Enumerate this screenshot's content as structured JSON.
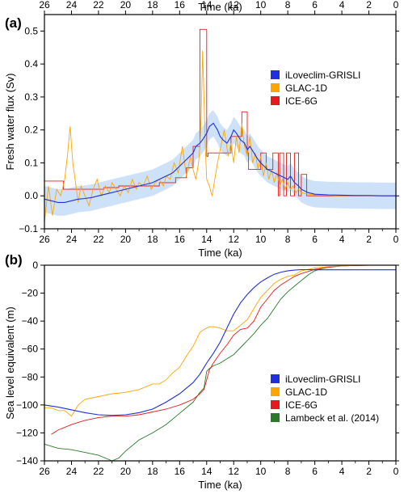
{
  "chart_data": [
    {
      "type": "line",
      "panel_label": "(a)",
      "xlabel": "Time (ka)",
      "ylabel": "Fresh water flux (Sv)",
      "xlim": [
        26,
        0
      ],
      "ylim": [
        -0.1,
        0.55
      ],
      "x_ticks": [
        26,
        24,
        22,
        20,
        18,
        16,
        14,
        12,
        10,
        8,
        6,
        4,
        2,
        0
      ],
      "y_ticks": [
        -0.1,
        0.0,
        0.1,
        0.2,
        0.3,
        0.4,
        0.5
      ],
      "y_tick_labels": [
        "−0.1",
        "0.0",
        "0.1",
        "0.2",
        "0.3",
        "0.4",
        "0.5"
      ],
      "legend_position": "right",
      "series": [
        {
          "name": "iLoveclim-GRISLI",
          "color": "#1f2fe0",
          "x": [
            26,
            25.5,
            25,
            24.5,
            24,
            23.5,
            23,
            22.5,
            22,
            21.5,
            21,
            20.5,
            20,
            19.5,
            19,
            18.5,
            18,
            17.5,
            17,
            16.5,
            16,
            15.5,
            15,
            14.8,
            14.5,
            14.3,
            14,
            13.8,
            13.5,
            13.2,
            13,
            12.8,
            12.5,
            12.2,
            12,
            11.8,
            11.5,
            11.2,
            11,
            10.8,
            10.5,
            10.2,
            10,
            9.5,
            9,
            8.5,
            8,
            7.8,
            7.5,
            7.2,
            7,
            6.5,
            6,
            5,
            4,
            3,
            2,
            1,
            0
          ],
          "y": [
            -0.01,
            -0.015,
            -0.02,
            -0.02,
            -0.015,
            -0.01,
            -0.008,
            -0.005,
            0.0,
            0.005,
            0.01,
            0.015,
            0.02,
            0.025,
            0.03,
            0.035,
            0.04,
            0.05,
            0.06,
            0.07,
            0.09,
            0.11,
            0.13,
            0.15,
            0.16,
            0.17,
            0.19,
            0.21,
            0.22,
            0.2,
            0.18,
            0.17,
            0.16,
            0.18,
            0.2,
            0.19,
            0.17,
            0.16,
            0.14,
            0.15,
            0.13,
            0.11,
            0.1,
            0.08,
            0.07,
            0.06,
            0.05,
            0.06,
            0.04,
            0.03,
            0.02,
            0.01,
            0.005,
            0.003,
            0.002,
            0.001,
            0.001,
            0.0,
            0.0
          ]
        },
        {
          "name": "GLAC-1D",
          "color": "#ffa500",
          "x": [
            26,
            25.7,
            25.4,
            25.1,
            24.8,
            24.5,
            24.3,
            24.1,
            23.9,
            23.7,
            23.5,
            23.3,
            23,
            22.7,
            22.4,
            22.1,
            21.8,
            21.5,
            21.2,
            21,
            20.7,
            20.4,
            20.1,
            19.8,
            19.5,
            19.2,
            19,
            18.7,
            18.4,
            18.1,
            17.8,
            17.5,
            17.2,
            17,
            16.7,
            16.4,
            16.1,
            15.8,
            15.5,
            15.2,
            15,
            14.8,
            14.6,
            14.5,
            14.4,
            14.3,
            14.2,
            14.1,
            14,
            13.8,
            13.6,
            13.4,
            13.2,
            13,
            12.7,
            12.4,
            12.2,
            12,
            11.8,
            11.6,
            11.4,
            11.2,
            11,
            10.8,
            10.6,
            10.4,
            10.2,
            10,
            9.8,
            9.6,
            9.4,
            9.2,
            9,
            8.8,
            8.6,
            8.4,
            8.2,
            8,
            7.8,
            7.6,
            7.4,
            7.2,
            7,
            6.5,
            6,
            5.5,
            5,
            4.5,
            4,
            3.5,
            3,
            2.5,
            2,
            1.5,
            1,
            0.5,
            0
          ],
          "y": [
            -0.08,
            0.03,
            -0.06,
            0.02,
            0.0,
            0.05,
            0.12,
            0.21,
            0.1,
            0.04,
            -0.02,
            0.03,
            0.0,
            -0.03,
            0.02,
            0.05,
            0.0,
            0.03,
            0.01,
            0.04,
            0.02,
            0.0,
            0.03,
            0.01,
            0.05,
            0.02,
            0.04,
            0.03,
            0.06,
            0.02,
            0.04,
            0.05,
            0.03,
            0.06,
            0.05,
            0.1,
            0.07,
            0.15,
            0.06,
            0.12,
            0.08,
            0.05,
            0.1,
            0.15,
            0.25,
            0.44,
            0.3,
            0.15,
            0.05,
            0.03,
            0.0,
            0.05,
            0.1,
            0.14,
            0.2,
            0.12,
            0.16,
            0.1,
            0.18,
            0.13,
            0.22,
            0.15,
            0.12,
            0.18,
            0.1,
            0.13,
            0.08,
            0.12,
            0.06,
            0.1,
            0.05,
            0.08,
            0.04,
            0.07,
            0.03,
            0.05,
            0.02,
            0.04,
            0.02,
            0.03,
            0.01,
            0.02,
            0.01,
            0.005,
            0.003,
            0.002,
            0.002,
            0.001,
            0.001,
            0.001,
            0.001,
            0.001,
            0.0,
            0.0,
            0.0,
            0.0,
            0.0
          ]
        },
        {
          "name": "ICE-6G",
          "color": "#e61a1a",
          "x": [
            26,
            24.6,
            24.6,
            21.6,
            21.6,
            20.5,
            20.5,
            17.5,
            17.5,
            16.3,
            16.3,
            15.5,
            15.5,
            15,
            15,
            14.5,
            14.5,
            14,
            14,
            13.9,
            13.9,
            12.2,
            12.2,
            11.4,
            11.4,
            11,
            11,
            10.9,
            10.9,
            10,
            10,
            9.6,
            9.6,
            9.1,
            9.1,
            8.7,
            8.7,
            8.6,
            8.6,
            8.3,
            8.3,
            8.1,
            8.1,
            7.8,
            7.8,
            7.5,
            7.5,
            7.2,
            7.2,
            7,
            7,
            6.6,
            6.6,
            6,
            6,
            0
          ],
          "y": [
            0.045,
            0.045,
            0.02,
            0.02,
            0.025,
            0.025,
            0.03,
            0.03,
            0.04,
            0.04,
            0.055,
            0.055,
            0.085,
            0.085,
            0.15,
            0.15,
            0.505,
            0.505,
            0.12,
            0.12,
            0.13,
            0.13,
            0.18,
            0.18,
            0.255,
            0.255,
            0.13,
            0.13,
            0.08,
            0.08,
            0.13,
            0.13,
            0.08,
            0.08,
            0.13,
            0.13,
            0.0,
            0.0,
            0.13,
            0.13,
            0.0,
            0.0,
            0.13,
            0.13,
            0.0,
            0.0,
            0.13,
            0.13,
            0.0,
            0.0,
            0.065,
            0.065,
            0.0,
            0.0,
            0.0,
            0.0
          ]
        }
      ]
    },
    {
      "type": "line",
      "panel_label": "(b)",
      "xlabel": "Time (ka)",
      "ylabel": "Sea level equivalent (m)",
      "xlim": [
        26,
        0
      ],
      "ylim": [
        -140,
        0
      ],
      "x_ticks": [
        26,
        24,
        22,
        20,
        18,
        16,
        14,
        12,
        10,
        8,
        6,
        4,
        2,
        0
      ],
      "y_ticks": [
        -140,
        -120,
        -100,
        -80,
        -60,
        -40,
        -20,
        0
      ],
      "y_tick_labels": [
        "−140",
        "−120",
        "−100",
        "−80",
        "−60",
        "−40",
        "−20",
        "0"
      ],
      "legend_position": "bottom-right",
      "series": [
        {
          "name": "iLoveclim-GRISLI",
          "color": "#1f2fe0",
          "x": [
            26,
            25,
            24,
            23,
            22,
            21,
            20,
            19,
            18,
            17,
            16,
            15,
            14.5,
            14,
            13.5,
            13,
            12.5,
            12,
            11.5,
            11,
            10.5,
            10,
            9.5,
            9,
            8.5,
            8,
            7.5,
            7,
            6.5,
            6,
            5,
            4,
            3,
            2,
            1,
            0
          ],
          "y": [
            -100,
            -101.5,
            -103.5,
            -105.5,
            -107,
            -107.5,
            -107,
            -105.5,
            -103,
            -98,
            -92,
            -84,
            -78,
            -70,
            -63,
            -55,
            -45,
            -35,
            -27,
            -21,
            -16,
            -12,
            -9,
            -6.5,
            -5,
            -4,
            -3.5,
            -3.2,
            -3.2,
            -3.3,
            -3.3,
            -3.3,
            -3.3,
            -3.3,
            -3.3,
            -3.3
          ]
        },
        {
          "name": "GLAC-1D",
          "color": "#ffa500",
          "x": [
            26,
            25.5,
            25,
            24.5,
            24,
            23.5,
            23,
            22,
            21,
            20,
            19,
            18,
            17.5,
            17,
            16.5,
            16,
            15.5,
            15,
            14.5,
            14.2,
            14,
            13.8,
            13.5,
            13,
            12.5,
            12,
            11.5,
            11,
            10.5,
            10,
            9.5,
            9,
            8.5,
            8,
            7.5,
            7,
            6,
            5,
            4,
            3,
            2,
            1,
            0
          ],
          "y": [
            -102,
            -102,
            -104,
            -104,
            -108,
            -100,
            -96,
            -94,
            -92,
            -91,
            -89,
            -85,
            -85,
            -82,
            -77,
            -73,
            -65,
            -58,
            -48,
            -46,
            -45,
            -44,
            -44,
            -45,
            -47,
            -47,
            -43,
            -39,
            -31,
            -23,
            -18,
            -13,
            -10,
            -8,
            -7,
            -4,
            -2,
            -1,
            -0.5,
            -0.2,
            0,
            0,
            0
          ]
        },
        {
          "name": "ICE-6G",
          "color": "#e61a1a",
          "x": [
            25.5,
            25,
            24,
            23,
            22,
            21,
            20,
            19,
            18,
            17,
            16,
            15.5,
            15,
            14.5,
            14.2,
            14,
            13.8,
            13.5,
            13,
            12.5,
            12,
            11.5,
            11,
            10.5,
            10,
            9.5,
            9,
            8.5,
            8,
            7.5,
            7,
            6,
            5,
            4,
            3,
            2,
            1,
            0
          ],
          "y": [
            -121,
            -118,
            -114,
            -111,
            -109,
            -108,
            -108,
            -107,
            -105,
            -103,
            -100,
            -98,
            -96,
            -92,
            -89,
            -82,
            -75,
            -70,
            -63,
            -57,
            -50,
            -46,
            -45,
            -40,
            -30,
            -24,
            -18,
            -14,
            -11,
            -8,
            -6,
            -3,
            -1.5,
            -0.5,
            -0.2,
            0,
            0,
            0
          ]
        },
        {
          "name": "Lambeck et al. (2014)",
          "color": "#2a7a2a",
          "x": [
            26,
            25,
            24,
            23,
            22,
            21.5,
            21,
            20.5,
            20,
            19,
            18,
            17,
            16,
            15,
            14.5,
            14.2,
            14,
            13.8,
            13.5,
            13,
            12.5,
            12,
            11.5,
            11,
            10.5,
            10,
            9.5,
            9,
            8.5,
            8,
            7.5,
            7,
            6.5,
            6,
            5.5,
            5,
            4,
            3,
            2,
            1,
            0
          ],
          "y": [
            -128,
            -131,
            -132,
            -134,
            -136,
            -138,
            -140,
            -138,
            -133,
            -125,
            -120,
            -114,
            -106,
            -98,
            -91,
            -88,
            -76,
            -74,
            -72,
            -70,
            -67,
            -64,
            -59,
            -54,
            -49,
            -43,
            -38,
            -31,
            -24,
            -19,
            -15,
            -11,
            -7,
            -4,
            -2.5,
            -1.5,
            -0.5,
            -0.2,
            0,
            0,
            0
          ]
        }
      ]
    }
  ]
}
